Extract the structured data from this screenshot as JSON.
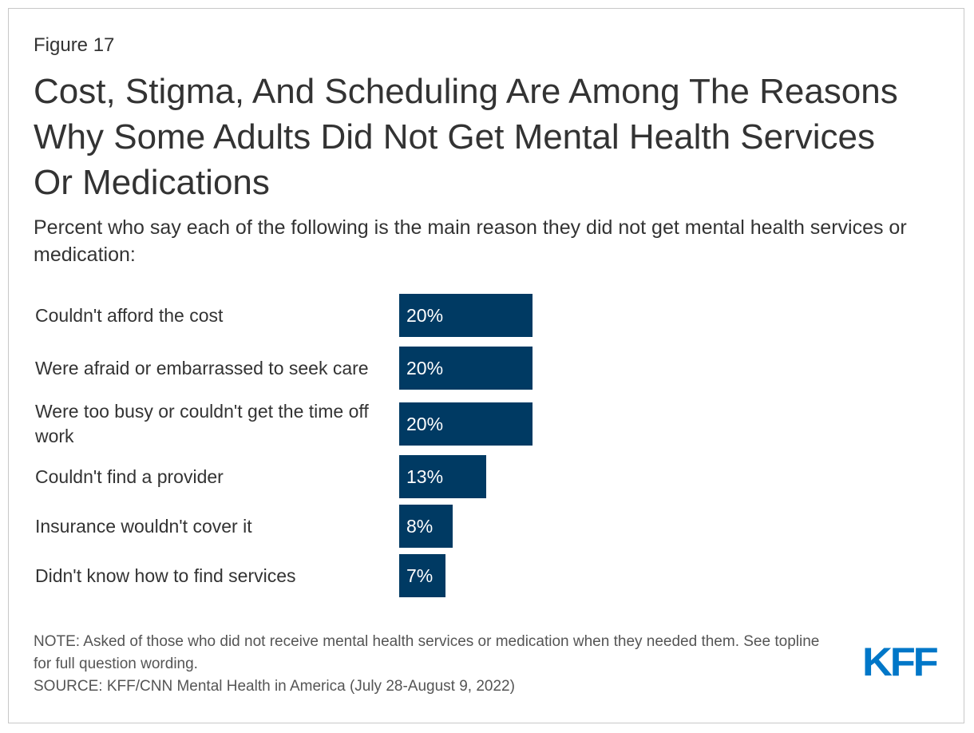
{
  "figure_label": "Figure 17",
  "title": "Cost, Stigma, And Scheduling Are Among The Reasons Why Some Adults Did Not Get Mental Health Services Or Medications",
  "subtitle": "Percent who say each of the following is the main reason they did not get mental health services or medication:",
  "note": "NOTE: Asked of those who did not receive mental health services or medication when they needed them. See topline for full question wording.",
  "source": "SOURCE: KFF/CNN Mental Health in America (July 28-August 9, 2022)",
  "logo": "KFF",
  "colors": {
    "bar": "#003a63",
    "logo": "#0077c8"
  },
  "chart_data": {
    "type": "bar",
    "orientation": "horizontal",
    "title": "Cost, Stigma, And Scheduling Are Among The Reasons Why Some Adults Did Not Get Mental Health Services Or Medications",
    "categories": [
      "Couldn't afford the cost",
      "Were afraid or embarrassed to seek care",
      "Were too busy or couldn't get the time off work",
      "Couldn't find a provider",
      "Insurance wouldn't cover it",
      "Didn't know how to find services"
    ],
    "values": [
      20,
      20,
      20,
      13,
      8,
      7
    ],
    "value_labels": [
      "20%",
      "20%",
      "20%",
      "13%",
      "8%",
      "7%"
    ],
    "xlabel": "",
    "ylabel": "",
    "xlim": [
      0,
      100
    ],
    "grid": false,
    "legend": "none"
  }
}
